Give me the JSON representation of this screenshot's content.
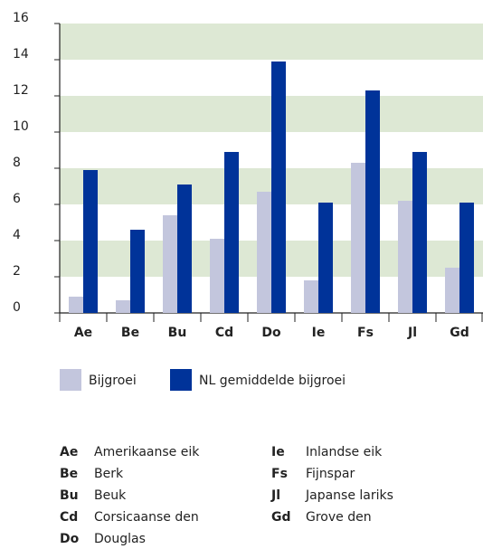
{
  "chart_data": {
    "type": "bar",
    "categories": [
      "Ae",
      "Be",
      "Bu",
      "Cd",
      "Do",
      "Ie",
      "Fs",
      "Jl",
      "Gd"
    ],
    "series": [
      {
        "name": "Bijgroei",
        "color": "#c3c6dd",
        "values": [
          0.9,
          0.7,
          5.4,
          4.1,
          6.7,
          1.8,
          8.3,
          6.2,
          2.5
        ]
      },
      {
        "name": "NL gemiddelde bijgroei",
        "color": "#003399",
        "values": [
          7.9,
          4.6,
          7.1,
          8.9,
          13.9,
          6.1,
          12.3,
          8.9,
          6.1
        ]
      }
    ],
    "ylim": [
      0,
      16
    ],
    "yticks": [
      0,
      2,
      4,
      6,
      8,
      10,
      12,
      14,
      16
    ],
    "grid": "bands",
    "grid_color": "#dde8d4",
    "key": [
      {
        "abbr": "Ae",
        "name": "Amerikaanse eik"
      },
      {
        "abbr": "Be",
        "name": "Berk"
      },
      {
        "abbr": "Bu",
        "name": "Beuk"
      },
      {
        "abbr": "Cd",
        "name": "Corsicaanse den"
      },
      {
        "abbr": "Do",
        "name": "Douglas"
      },
      {
        "abbr": "Ie",
        "name": "Inlandse eik"
      },
      {
        "abbr": "Fs",
        "name": "Fijnspar"
      },
      {
        "abbr": "Jl",
        "name": "Japanse lariks"
      },
      {
        "abbr": "Gd",
        "name": "Grove den"
      }
    ]
  }
}
